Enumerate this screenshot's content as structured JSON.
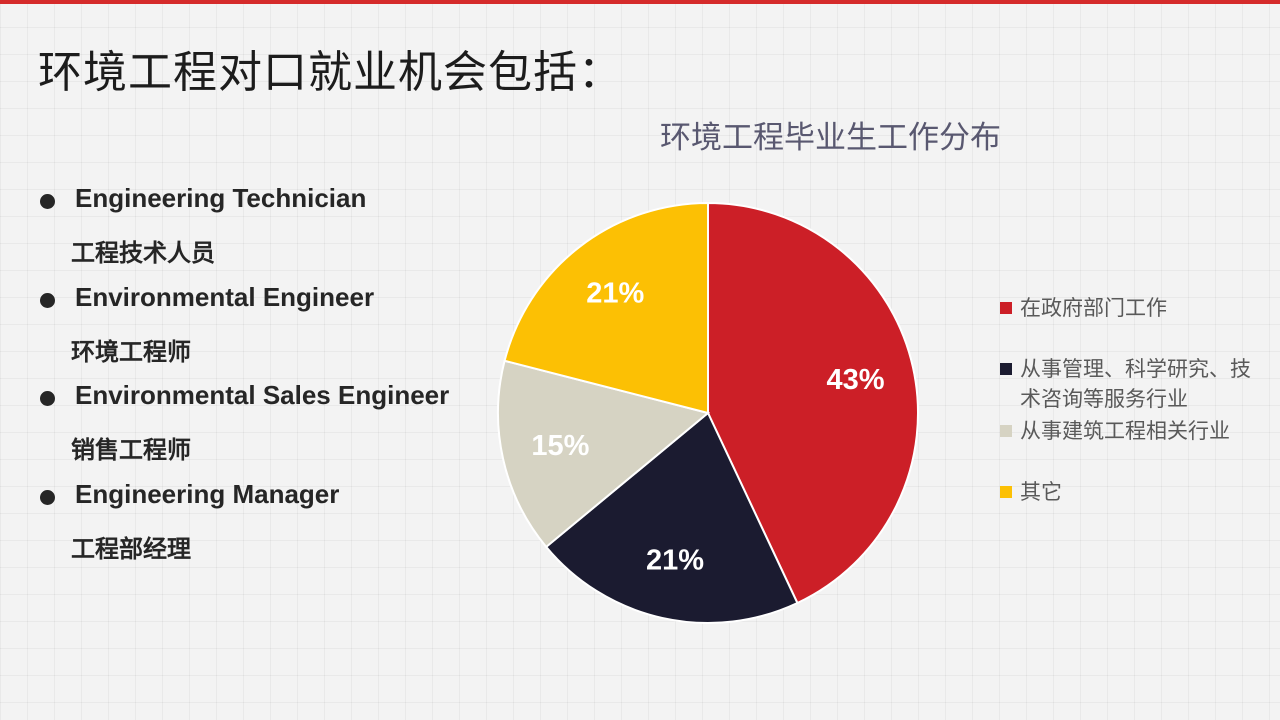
{
  "page": {
    "title": "环境工程对口就业机会包括："
  },
  "bullets": [
    {
      "en": "Engineering Technician",
      "cn": "工程技术人员"
    },
    {
      "en": "Environmental Engineer",
      "cn": "环境工程师"
    },
    {
      "en": "Environmental Sales Engineer",
      "cn": "销售工程师"
    },
    {
      "en": "Engineering Manager",
      "cn": "工程部经理"
    }
  ],
  "chart_data": {
    "type": "pie",
    "title": "环境工程毕业生工作分布",
    "categories": [
      "在政府部门工作",
      "从事管理、科学研究、技术咨询等服务行业",
      "从事建筑工程相关行业",
      "其它"
    ],
    "values": [
      43,
      21,
      15,
      21
    ],
    "data_labels": [
      "43%",
      "21%",
      "15%",
      "21%"
    ],
    "colors": [
      "#cc1f27",
      "#1b1b30",
      "#d6d3c3",
      "#fcc004"
    ],
    "legend": "right",
    "start_angle": "12 o'clock",
    "direction": "clockwise"
  }
}
